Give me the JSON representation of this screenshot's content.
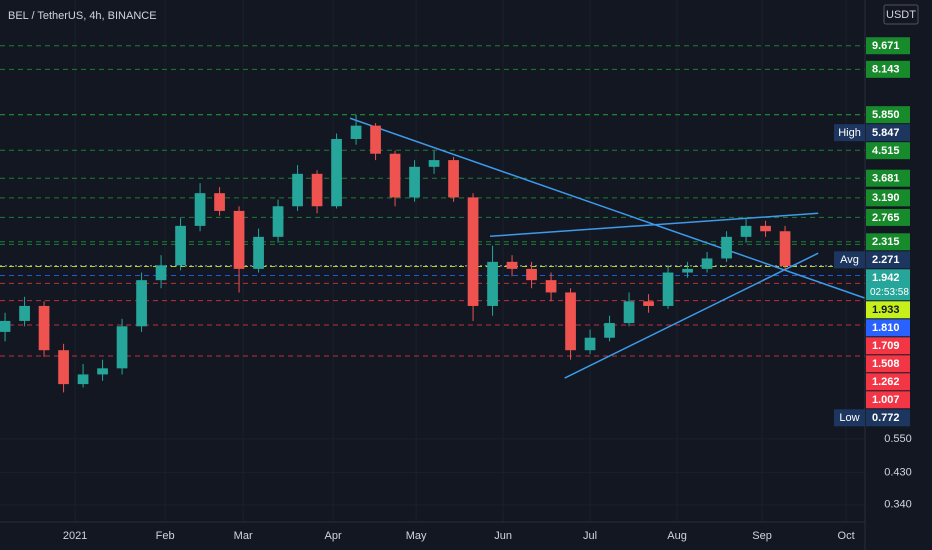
{
  "chart_data": {
    "type": "candlestick",
    "title": "BEL / TetherUS, 4h, BINANCE",
    "currency": "USDT",
    "log_scale": true,
    "xlim": [
      -0.26,
      44.1
    ],
    "ylim": [
      0.3,
      13.5
    ],
    "xticks": [
      {
        "value": 3.59,
        "label": "2021"
      },
      {
        "value": 8.21,
        "label": "Feb"
      },
      {
        "value": 12.21,
        "label": "Mar"
      },
      {
        "value": 16.82,
        "label": "Apr"
      },
      {
        "value": 21.08,
        "label": "May"
      },
      {
        "value": 25.54,
        "label": "Jun"
      },
      {
        "value": 30.0,
        "label": "Jul"
      },
      {
        "value": 34.46,
        "label": "Aug"
      },
      {
        "value": 38.82,
        "label": "Sep"
      },
      {
        "value": 43.13,
        "label": "Oct"
      }
    ],
    "yticks": [
      {
        "value": 0.55,
        "label": "0.550"
      },
      {
        "value": 0.43,
        "label": "0.430"
      },
      {
        "value": 0.34,
        "label": "0.340"
      }
    ],
    "up_color": "#26a69a",
    "down_color": "#ef5350",
    "open": [
      1.2,
      1.3,
      1.45,
      1.05,
      0.82,
      0.88,
      0.92,
      1.25,
      1.75,
      1.95,
      2.6,
      3.3,
      2.9,
      1.9,
      2.4,
      3.0,
      3.8,
      3.0,
      4.9,
      5.4,
      4.4,
      3.2,
      4.0,
      4.2,
      3.2,
      1.45,
      2.0,
      1.9,
      1.75,
      1.6,
      1.05,
      1.15,
      1.28,
      1.5,
      1.45,
      1.85,
      1.9,
      2.05,
      2.4,
      2.6,
      2.5
    ],
    "high": [
      1.38,
      1.55,
      1.5,
      1.1,
      0.95,
      0.98,
      1.32,
      1.85,
      2.1,
      2.75,
      3.55,
      3.45,
      3.0,
      2.55,
      3.15,
      4.05,
      3.9,
      5.1,
      5.847,
      5.5,
      4.5,
      4.2,
      4.5,
      4.3,
      3.3,
      2.25,
      2.1,
      2.0,
      1.85,
      1.65,
      1.22,
      1.35,
      1.6,
      1.58,
      1.95,
      2.0,
      2.15,
      2.5,
      2.75,
      2.7,
      2.6
    ],
    "low": [
      1.12,
      1.25,
      1.0,
      0.772,
      0.8,
      0.84,
      0.88,
      1.2,
      1.65,
      1.88,
      2.5,
      2.8,
      1.6,
      1.85,
      2.3,
      2.9,
      2.85,
      2.95,
      4.7,
      4.2,
      3.0,
      3.1,
      3.8,
      3.1,
      1.3,
      1.35,
      1.8,
      1.65,
      1.5,
      0.98,
      1.02,
      1.12,
      1.25,
      1.38,
      1.42,
      1.78,
      1.85,
      2.0,
      2.3,
      2.4,
      1.88
    ],
    "close": [
      1.3,
      1.45,
      1.05,
      0.82,
      0.88,
      0.92,
      1.25,
      1.75,
      1.95,
      2.6,
      3.3,
      2.9,
      1.9,
      2.4,
      3.0,
      3.8,
      3.0,
      4.9,
      5.4,
      4.4,
      3.2,
      4.0,
      4.2,
      3.2,
      1.45,
      2.0,
      1.9,
      1.75,
      1.6,
      1.05,
      1.15,
      1.28,
      1.5,
      1.45,
      1.85,
      1.9,
      2.05,
      2.4,
      2.6,
      2.5,
      1.942
    ],
    "trendlines": [
      {
        "x": [
          17.69,
          44.1
        ],
        "y": [
          5.7,
          1.535
        ],
        "color": "#3d9be9"
      },
      {
        "x": [
          28.7,
          41.7
        ],
        "y": [
          0.857,
          2.13
        ],
        "color": "#3d9be9"
      },
      {
        "x": [
          24.87,
          41.7
        ],
        "y": [
          2.41,
          2.85
        ],
        "color": "#3d9be9"
      }
    ],
    "levels": [
      {
        "value": 9.671,
        "label": "9.671",
        "color": "#178a2c",
        "line_color": "#1e8f34"
      },
      {
        "value": 8.143,
        "label": "8.143",
        "color": "#178a2c",
        "line_color": "#1e8f34"
      },
      {
        "value": 5.85,
        "label": "5.850",
        "color": "#178a2c",
        "line_color": "#1e8f34"
      },
      {
        "value": 5.847,
        "label": "5.847",
        "tag": "High",
        "color": "#1c3660",
        "line_color": "#1e8f34"
      },
      {
        "value": 4.515,
        "label": "4.515",
        "color": "#178a2c",
        "line_color": "#1e8f34"
      },
      {
        "value": 3.681,
        "label": "3.681",
        "color": "#178a2c",
        "line_color": "#1e8f34"
      },
      {
        "value": 3.19,
        "label": "3.190",
        "color": "#178a2c",
        "line_color": "#1e8f34"
      },
      {
        "value": 2.765,
        "label": "2.765",
        "color": "#178a2c",
        "line_color": "#1e8f34"
      },
      {
        "value": 2.315,
        "label": "2.315",
        "color": "#178a2c",
        "line_color": "#1e8f34"
      },
      {
        "value": 2.271,
        "label": "2.271",
        "tag": "Avg",
        "color": "#1c3660",
        "line_color": "#1e8f34"
      },
      {
        "value": 1.942,
        "label": "1.942",
        "sub": "02:53:58",
        "color": "#26a69a",
        "line_color": "#d1d4dc"
      },
      {
        "value": 1.933,
        "label": "1.933",
        "color": "#c6f01c",
        "text_color": "#131722",
        "line_color": "#c6f01c"
      },
      {
        "value": 1.81,
        "label": "1.810",
        "color": "#2962ff",
        "line_color": "#2962ff"
      },
      {
        "value": 1.709,
        "label": "1.709",
        "color": "#f23645",
        "line_color": "#e0343f"
      },
      {
        "value": 1.508,
        "label": "1.508",
        "color": "#f23645",
        "line_color": "#e0343f"
      },
      {
        "value": 1.262,
        "label": "1.262",
        "color": "#f23645",
        "line_color": "#e0343f"
      },
      {
        "value": 1.007,
        "label": "1.007",
        "color": "#f23645",
        "line_color": "#e0343f"
      },
      {
        "value": 0.772,
        "label": "0.772",
        "tag": "Low",
        "color": "#1c3660"
      }
    ]
  }
}
